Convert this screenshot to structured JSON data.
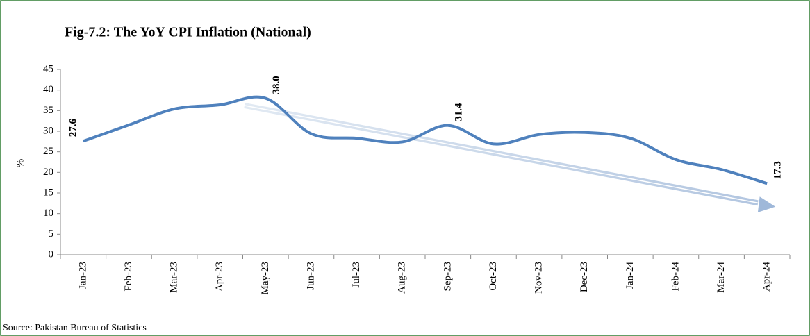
{
  "chart_data": {
    "type": "line",
    "title": "Fig-7.2: The YoY CPI Inflation (National)",
    "y_label": "%",
    "source": "Source: Pakistan Bureau of Statistics",
    "categories": [
      "Jan-23",
      "Feb-23",
      "Mar-23",
      "Apr-23",
      "May-23",
      "Jun-23",
      "Jul-23",
      "Aug-23",
      "Sep-23",
      "Oct-23",
      "Nov-23",
      "Dec-23",
      "Jan-24",
      "Feb-24",
      "Mar-24",
      "Apr-24"
    ],
    "series": [
      {
        "name": "YoY CPI Inflation",
        "color": "#4f81bd",
        "values": [
          27.6,
          31.5,
          35.4,
          36.4,
          38.0,
          29.4,
          28.3,
          27.4,
          31.4,
          26.9,
          29.2,
          29.7,
          28.3,
          23.1,
          20.7,
          17.3
        ],
        "value_labels": [
          "27.6",
          null,
          null,
          null,
          "38.0",
          null,
          null,
          null,
          "31.4",
          null,
          null,
          null,
          null,
          null,
          null,
          "17.3"
        ]
      }
    ],
    "ylim": [
      0,
      45
    ],
    "yticks": [
      0,
      5,
      10,
      15,
      20,
      25,
      30,
      35,
      40,
      45
    ],
    "grid": false
  }
}
